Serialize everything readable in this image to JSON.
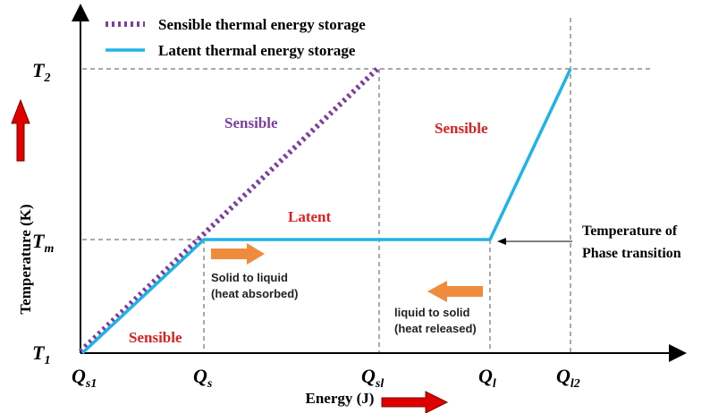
{
  "legend": {
    "sensible_label": "Sensible thermal energy storage",
    "latent_label": "Latent thermal energy storage"
  },
  "axes": {
    "y_label": "Temperature (K)",
    "x_label": "Energy (J)",
    "y_ticks": {
      "t1": "T",
      "t1_sub": "1",
      "tm": "T",
      "tm_sub": "m",
      "t2": "T",
      "t2_sub": "2"
    },
    "x_ticks": {
      "qs1": "Q",
      "qs1_sub": "s1",
      "qs": "Q",
      "qs_sub": "s",
      "qsl": "Q",
      "qsl_sub": "sl",
      "ql": "Q",
      "ql_sub": "l",
      "ql2": "Q",
      "ql2_sub": "l2"
    }
  },
  "annotations": {
    "sensible_purple": "Sensible",
    "sensible_red_right": "Sensible",
    "latent_red": "Latent",
    "sensible_red_bottom": "Sensible",
    "solid_to_liquid": "Solid to liquid",
    "heat_absorbed": "(heat absorbed)",
    "liquid_to_solid": "liquid to solid",
    "heat_released": "(heat released)",
    "temp_of": "Temperature of",
    "phase_transition": "Phase transition"
  },
  "colors": {
    "sensible_line": "#7B3FA0",
    "latent_line": "#1FB3E8",
    "red_text": "#E02020",
    "purple_text": "#7B3FA0",
    "orange_arrow": "#F08A3C",
    "red_arrow": "#E00000"
  },
  "icons": [
    "red-up-arrow-icon",
    "red-right-arrow-icon",
    "orange-right-arrow-icon",
    "orange-left-arrow-icon",
    "black-left-arrow-icon"
  ]
}
